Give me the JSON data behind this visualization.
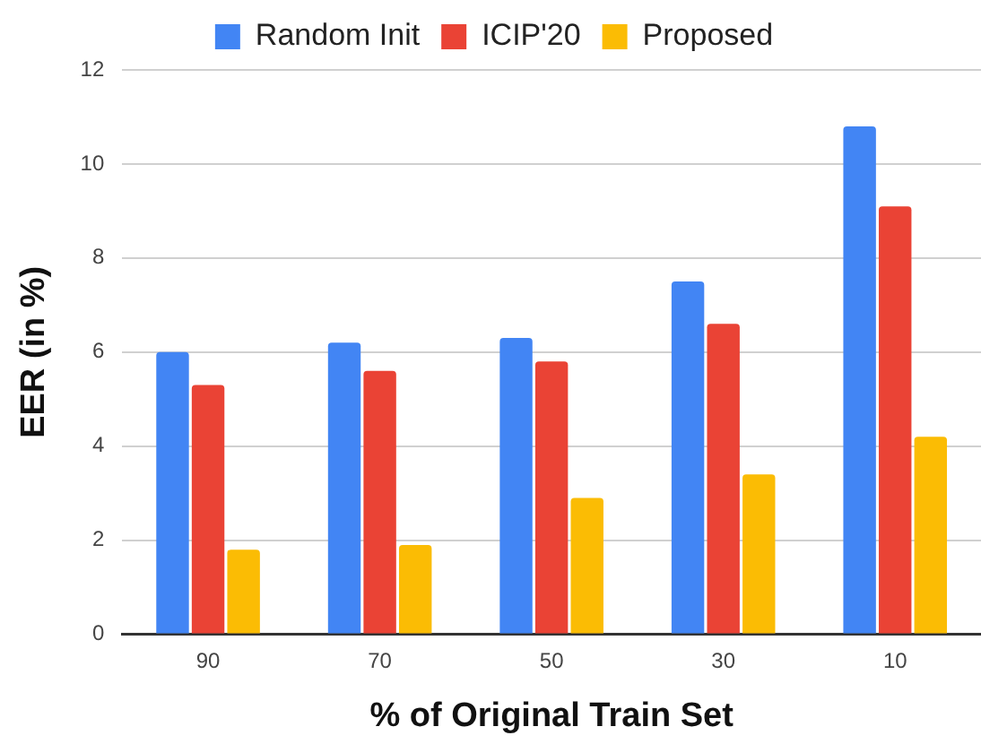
{
  "chart_data": {
    "type": "bar",
    "xlabel": "% of Original Train Set",
    "ylabel": "EER (in %)",
    "categories": [
      "90",
      "70",
      "50",
      "30",
      "10"
    ],
    "series": [
      {
        "name": "Random Init",
        "color": "#4285f4",
        "values": [
          6.0,
          6.2,
          6.3,
          7.5,
          10.8
        ]
      },
      {
        "name": "ICIP'20",
        "color": "#ea4335",
        "values": [
          5.3,
          5.6,
          5.8,
          6.6,
          9.1
        ]
      },
      {
        "name": "Proposed",
        "color": "#fbbc04",
        "values": [
          1.8,
          1.9,
          2.9,
          3.4,
          4.2
        ]
      }
    ],
    "ylim": [
      0,
      12
    ],
    "yticks": [
      0,
      2,
      4,
      6,
      8,
      10,
      12
    ],
    "grid": "y",
    "legend": "top"
  }
}
